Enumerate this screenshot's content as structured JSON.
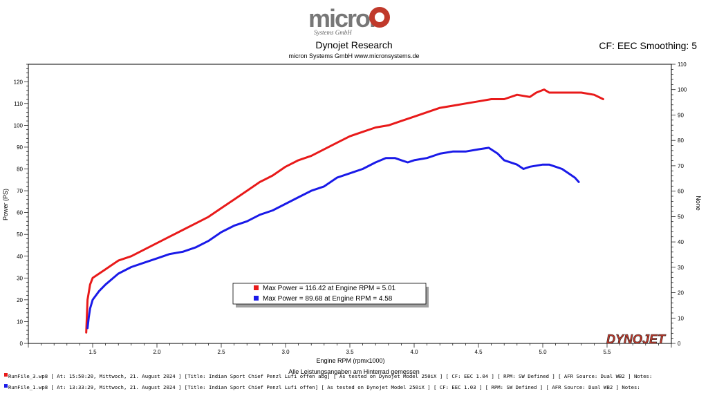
{
  "header": {
    "logo_text": "micron",
    "logo_subtext": "Systems GmbH",
    "title": "Dynojet Research",
    "subtitle": "micron Systems GmbH  www.micronsystems.de",
    "cf_label": "CF: EEC Smoothing: 5"
  },
  "colors": {
    "run1": "#e81a1a",
    "run2": "#1a1ae8",
    "brand_red": "#c0392b"
  },
  "chart_data": {
    "type": "line",
    "xlabel": "Engine RPM (rpmx1000)",
    "ylabel": "Power (PS)",
    "y2label": "None",
    "xlim": [
      1.0,
      6.0
    ],
    "ylim": [
      0,
      128
    ],
    "y2lim": [
      0,
      110
    ],
    "x_ticks": [
      "1.5",
      "2.0",
      "2.5",
      "3.0",
      "3.5",
      "4.0",
      "4.5",
      "5.0",
      "5.5"
    ],
    "y_ticks": [
      "0",
      "10",
      "20",
      "30",
      "40",
      "50",
      "60",
      "70",
      "80",
      "90",
      "100",
      "110",
      "120"
    ],
    "y2_ticks": [
      "0",
      "10",
      "20",
      "30",
      "40",
      "50",
      "60",
      "70",
      "80",
      "90",
      "100",
      "110"
    ],
    "grid": false,
    "brand_mark": "DYNOJET",
    "note": "Alle Leistungsangaben am Hinterrad gemessen",
    "legend": [
      "Max Power = 116.42 at Engine RPM = 5.01",
      "Max Power = 89.68 at Engine RPM = 4.58"
    ],
    "series": [
      {
        "x": [
          1.45,
          1.46,
          1.48,
          1.5,
          1.55,
          1.6,
          1.65,
          1.7,
          1.8,
          1.9,
          2.0,
          2.1,
          2.2,
          2.3,
          2.4,
          2.5,
          2.6,
          2.7,
          2.8,
          2.9,
          3.0,
          3.1,
          3.2,
          3.3,
          3.4,
          3.5,
          3.6,
          3.7,
          3.8,
          3.9,
          4.0,
          4.1,
          4.2,
          4.3,
          4.4,
          4.5,
          4.6,
          4.7,
          4.8,
          4.9,
          4.95,
          5.01,
          5.05,
          5.1,
          5.2,
          5.3,
          5.4,
          5.47
        ],
        "values": [
          5,
          20,
          27,
          30,
          32,
          34,
          36,
          38,
          40,
          43,
          46,
          49,
          52,
          55,
          58,
          62,
          66,
          70,
          74,
          77,
          81,
          84,
          86,
          89,
          92,
          95,
          97,
          99,
          100,
          102,
          104,
          106,
          108,
          109,
          110,
          111,
          112,
          112,
          114,
          113,
          115,
          116.4,
          115,
          115,
          115,
          115,
          114,
          112
        ]
      },
      {
        "x": [
          1.46,
          1.47,
          1.48,
          1.5,
          1.55,
          1.6,
          1.7,
          1.8,
          1.9,
          2.0,
          2.1,
          2.2,
          2.3,
          2.4,
          2.5,
          2.6,
          2.7,
          2.8,
          2.9,
          3.0,
          3.1,
          3.2,
          3.3,
          3.4,
          3.5,
          3.6,
          3.7,
          3.78,
          3.85,
          3.9,
          3.95,
          4.0,
          4.1,
          4.2,
          4.3,
          4.4,
          4.5,
          4.58,
          4.65,
          4.7,
          4.8,
          4.85,
          4.9,
          5.0,
          5.05,
          5.1,
          5.15,
          5.2,
          5.25,
          5.28
        ],
        "values": [
          7,
          12,
          16,
          20,
          24,
          27,
          32,
          35,
          37,
          39,
          41,
          42,
          44,
          47,
          51,
          54,
          56,
          59,
          61,
          64,
          67,
          70,
          72,
          76,
          78,
          80,
          83,
          85,
          85,
          84,
          83,
          84,
          85,
          87,
          88,
          88,
          89,
          89.7,
          87,
          84,
          82,
          80,
          81,
          82,
          82,
          81,
          80,
          78,
          76,
          74
        ]
      }
    ]
  },
  "footer": {
    "line1": "RunFile_3.wp8 [ At: 15:50:20, Mittwoch, 21. August 2024 ] [Title: Indian Sport Chief Penzl Lufi offen abg]  [ As tested on Dynojet Model 250iX ] [ CF: EEC 1.04 ] [ RPM: SW Defined ] [ AFR Source: Dual WB2 ] Notes:",
    "line2": "RunFile_1.wp8 [ At: 13:33:29, Mittwoch, 21. August 2024 ] [Title: Indian Sport Chief Penzl Lufi offen]  [ As tested on Dynojet Model 250iX ] [ CF: EEC 1.03 ] [ RPM: SW Defined ] [ AFR Source: Dual WB2 ] Notes:"
  }
}
